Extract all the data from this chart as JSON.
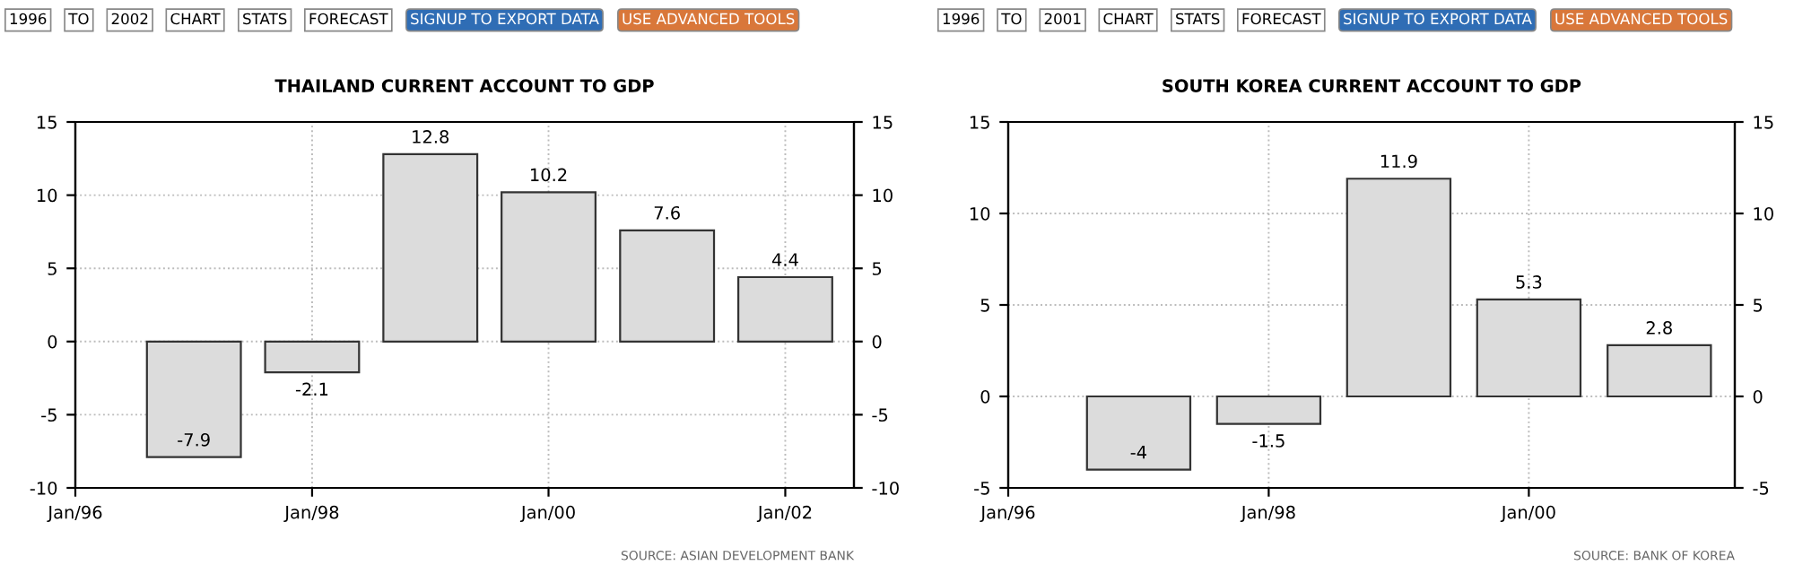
{
  "chart_data": [
    {
      "type": "bar",
      "title": "THAILAND CURRENT ACCOUNT TO GDP",
      "x": [
        "1997-01",
        "1998-01",
        "1999-01",
        "2000-01",
        "2001-01",
        "2002-01"
      ],
      "values": [
        -7.9,
        -2.1,
        12.8,
        10.2,
        7.6,
        4.4
      ],
      "color": "#dcdcdc",
      "data_labels": true,
      "xlim": [
        "1996-01",
        "2002-08"
      ],
      "xticks": [
        {
          "value": "1996-01",
          "label": "Jan/96"
        },
        {
          "value": "1998-01",
          "label": "Jan/98"
        },
        {
          "value": "2000-01",
          "label": "Jan/00"
        },
        {
          "value": "2002-01",
          "label": "Jan/02"
        }
      ],
      "ylim": [
        -10,
        15
      ],
      "yticks": [
        -10,
        -5,
        0,
        5,
        10,
        15
      ],
      "y2lim": [
        -10,
        15
      ],
      "y2ticks": [
        -10,
        -5,
        0,
        5,
        10,
        15
      ],
      "grid": true,
      "annotations": [
        "1996",
        "TO",
        "2002",
        "CHART",
        "STATS",
        "FORECAST",
        "SIGNUP TO EXPORT DATA",
        "USE ADVANCED TOOLS",
        "SOURCE: ASIAN DEVELOPMENT BANK"
      ]
    },
    {
      "type": "bar",
      "title": "SOUTH KOREA CURRENT ACCOUNT TO GDP",
      "x": [
        "1997-01",
        "1998-01",
        "1999-01",
        "2000-01",
        "2001-01"
      ],
      "values": [
        -4,
        -1.5,
        11.9,
        5.3,
        2.8
      ],
      "color": "#dcdcdc",
      "data_labels": true,
      "xlim": [
        "1996-01",
        "2001-08"
      ],
      "xticks": [
        {
          "value": "1996-01",
          "label": "Jan/96"
        },
        {
          "value": "1998-01",
          "label": "Jan/98"
        },
        {
          "value": "2000-01",
          "label": "Jan/00"
        }
      ],
      "ylim": [
        -5,
        15
      ],
      "yticks": [
        -5,
        0,
        5,
        10,
        15
      ],
      "y2lim": [
        -5,
        15
      ],
      "y2ticks": [
        -5,
        0,
        5,
        10,
        15
      ],
      "grid": true,
      "annotations": [
        "1996",
        "TO",
        "2001",
        "CHART",
        "STATS",
        "FORECAST",
        "SIGNUP TO EXPORT DATA",
        "USE ADVANCED TOOLS",
        "SOURCE: BANK OF KOREA"
      ]
    }
  ]
}
